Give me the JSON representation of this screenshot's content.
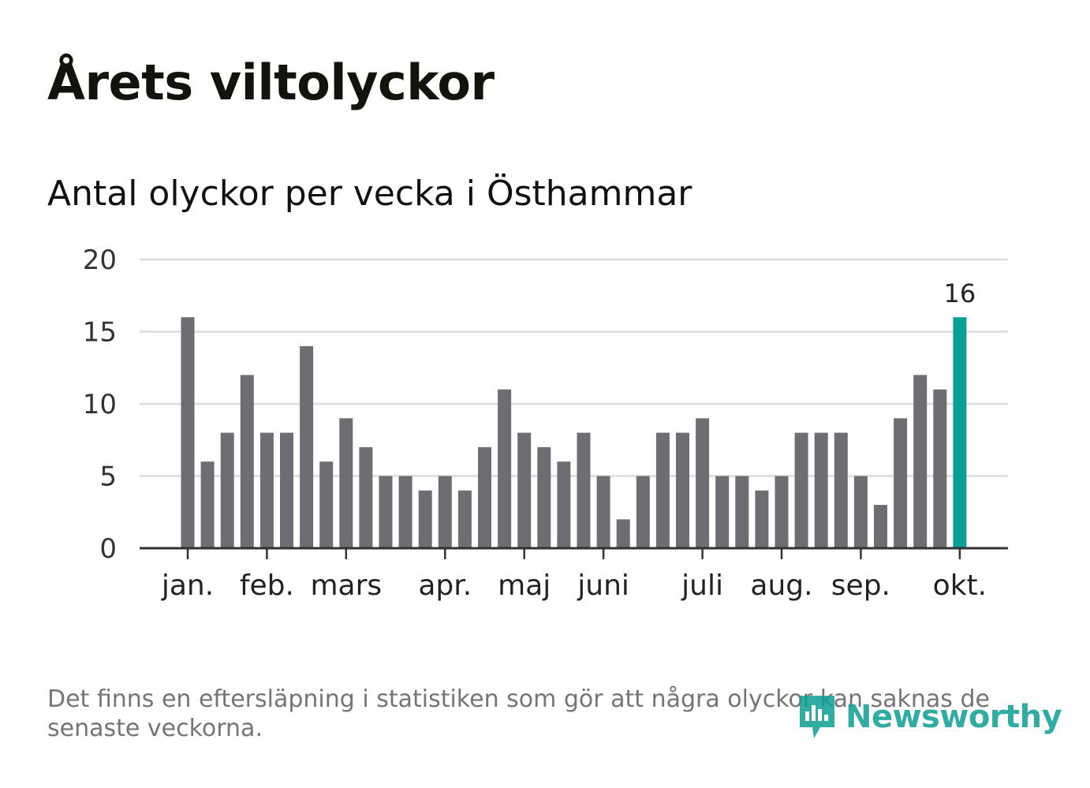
{
  "title": "Årets viltolyckor",
  "subtitle": "Antal olyckor per vecka i Östhammar",
  "footnote": "Det finns en eftersläpning i statistiken som gör att några olyckor kan saknas de senaste veckorna.",
  "logo": {
    "text": "Newsworthy",
    "icon": "newsworthy-chart-icon"
  },
  "colors": {
    "bar": "#6e6d72",
    "highlight": "#0b9f95",
    "grid": "#dcdcdc",
    "axis": "#333333"
  },
  "chart_data": {
    "type": "bar",
    "title": "Antal olyckor per vecka i Östhammar",
    "xlabel": "",
    "ylabel": "",
    "ylim": [
      0,
      20
    ],
    "yticks": [
      "0",
      "5",
      "10",
      "15",
      "20"
    ],
    "grid": true,
    "weeks": [
      1,
      2,
      3,
      4,
      5,
      6,
      7,
      8,
      9,
      10,
      11,
      12,
      13,
      14,
      15,
      16,
      17,
      18,
      19,
      20,
      21,
      22,
      23,
      24,
      25,
      26,
      27,
      28,
      29,
      30,
      31,
      32,
      33,
      34,
      35,
      36,
      37,
      38,
      39,
      40
    ],
    "values": [
      16,
      6,
      8,
      12,
      8,
      8,
      14,
      6,
      9,
      7,
      5,
      5,
      4,
      5,
      4,
      7,
      11,
      8,
      7,
      6,
      8,
      5,
      2,
      5,
      8,
      8,
      9,
      5,
      5,
      4,
      5,
      8,
      8,
      8,
      5,
      3,
      9,
      12,
      11,
      16
    ],
    "month_labels": [
      {
        "label": "jan.",
        "week": 1
      },
      {
        "label": "feb.",
        "week": 5
      },
      {
        "label": "mars",
        "week": 9
      },
      {
        "label": "apr.",
        "week": 14
      },
      {
        "label": "maj",
        "week": 18
      },
      {
        "label": "juni",
        "week": 22
      },
      {
        "label": "juli",
        "week": 27
      },
      {
        "label": "aug.",
        "week": 31
      },
      {
        "label": "sep.",
        "week": 35
      },
      {
        "label": "okt.",
        "week": 40
      }
    ],
    "highlight_index": 39,
    "highlight_label": "16"
  }
}
